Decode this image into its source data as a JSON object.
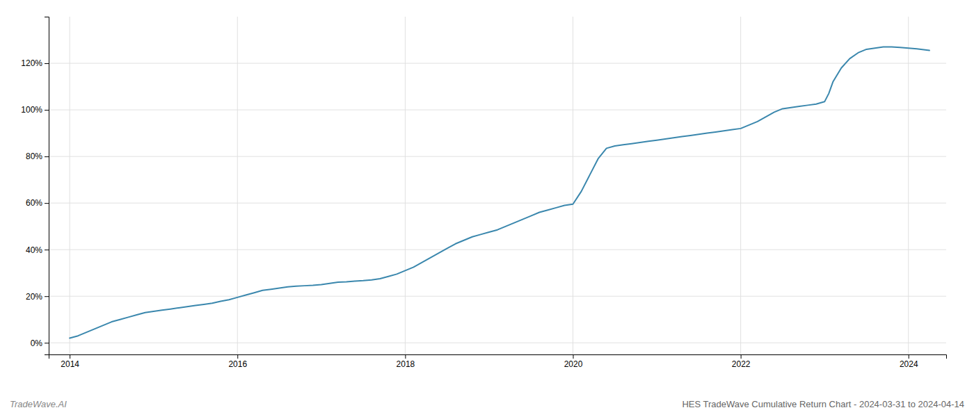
{
  "chart_data": {
    "type": "line",
    "title": "HES TradeWave Cumulative Return Chart - 2024-03-31 to 2024-04-14",
    "annotations": [
      "TradeWave.AI"
    ],
    "color": "#3a87ad",
    "grid": true,
    "x": [
      2014.0,
      2014.1,
      2014.2,
      2014.3,
      2014.4,
      2014.5,
      2014.6,
      2014.7,
      2014.8,
      2014.9,
      2015.0,
      2015.1,
      2015.2,
      2015.3,
      2015.4,
      2015.5,
      2015.6,
      2015.7,
      2015.8,
      2015.9,
      2016.0,
      2016.1,
      2016.2,
      2016.3,
      2016.4,
      2016.5,
      2016.6,
      2016.7,
      2016.8,
      2016.9,
      2017.0,
      2017.1,
      2017.2,
      2017.3,
      2017.4,
      2017.5,
      2017.6,
      2017.7,
      2017.8,
      2017.9,
      2018.0,
      2018.1,
      2018.2,
      2018.3,
      2018.4,
      2018.5,
      2018.6,
      2018.7,
      2018.8,
      2018.9,
      2019.0,
      2019.1,
      2019.2,
      2019.3,
      2019.4,
      2019.5,
      2019.6,
      2019.7,
      2019.8,
      2019.9,
      2020.0,
      2020.1,
      2020.2,
      2020.3,
      2020.4,
      2020.5,
      2020.6,
      2020.7,
      2020.8,
      2020.9,
      2021.0,
      2021.1,
      2021.2,
      2021.3,
      2021.4,
      2021.5,
      2021.6,
      2021.7,
      2021.8,
      2021.9,
      2022.0,
      2022.1,
      2022.2,
      2022.3,
      2022.4,
      2022.5,
      2022.6,
      2022.7,
      2022.8,
      2022.9,
      2023.0,
      2023.05,
      2023.1,
      2023.2,
      2023.3,
      2023.4,
      2023.5,
      2023.6,
      2023.7,
      2023.8,
      2023.9,
      2024.0,
      2024.1,
      2024.25
    ],
    "values": [
      2.0,
      3.0,
      4.5,
      6.0,
      7.5,
      9.0,
      10.0,
      11.0,
      12.0,
      13.0,
      13.5,
      14.0,
      14.5,
      15.0,
      15.5,
      16.0,
      16.5,
      17.0,
      17.8,
      18.5,
      19.5,
      20.5,
      21.5,
      22.5,
      23.0,
      23.5,
      24.0,
      24.3,
      24.5,
      24.7,
      25.0,
      25.5,
      26.0,
      26.2,
      26.5,
      26.7,
      27.0,
      27.5,
      28.5,
      29.5,
      31.0,
      32.5,
      34.5,
      36.5,
      38.5,
      40.5,
      42.5,
      44.0,
      45.5,
      46.5,
      47.5,
      48.5,
      50.0,
      51.5,
      53.0,
      54.5,
      56.0,
      57.0,
      58.0,
      59.0,
      59.5,
      65.0,
      72.0,
      79.0,
      83.5,
      84.5,
      85.0,
      85.5,
      86.0,
      86.5,
      87.0,
      87.5,
      88.0,
      88.5,
      89.0,
      89.5,
      90.0,
      90.5,
      91.0,
      91.5,
      92.0,
      93.5,
      95.0,
      97.0,
      99.0,
      100.5,
      101.0,
      101.5,
      102.0,
      102.5,
      103.5,
      107.0,
      112.0,
      118.0,
      122.0,
      124.5,
      126.0,
      126.5,
      127.0,
      127.0,
      126.8,
      126.5,
      126.2,
      125.5
    ],
    "xlim": [
      2013.75,
      2024.45
    ],
    "ylim": [
      -5,
      140
    ],
    "xticks": [
      2014,
      2016,
      2018,
      2020,
      2022,
      2024
    ],
    "yticks": [
      {
        "value": 0,
        "label": "0%"
      },
      {
        "value": 20,
        "label": "20%"
      },
      {
        "value": 40,
        "label": "40%"
      },
      {
        "value": 60,
        "label": "60%"
      },
      {
        "value": 80,
        "label": "80%"
      },
      {
        "value": 100,
        "label": "100%"
      },
      {
        "value": 120,
        "label": "120%"
      }
    ]
  }
}
